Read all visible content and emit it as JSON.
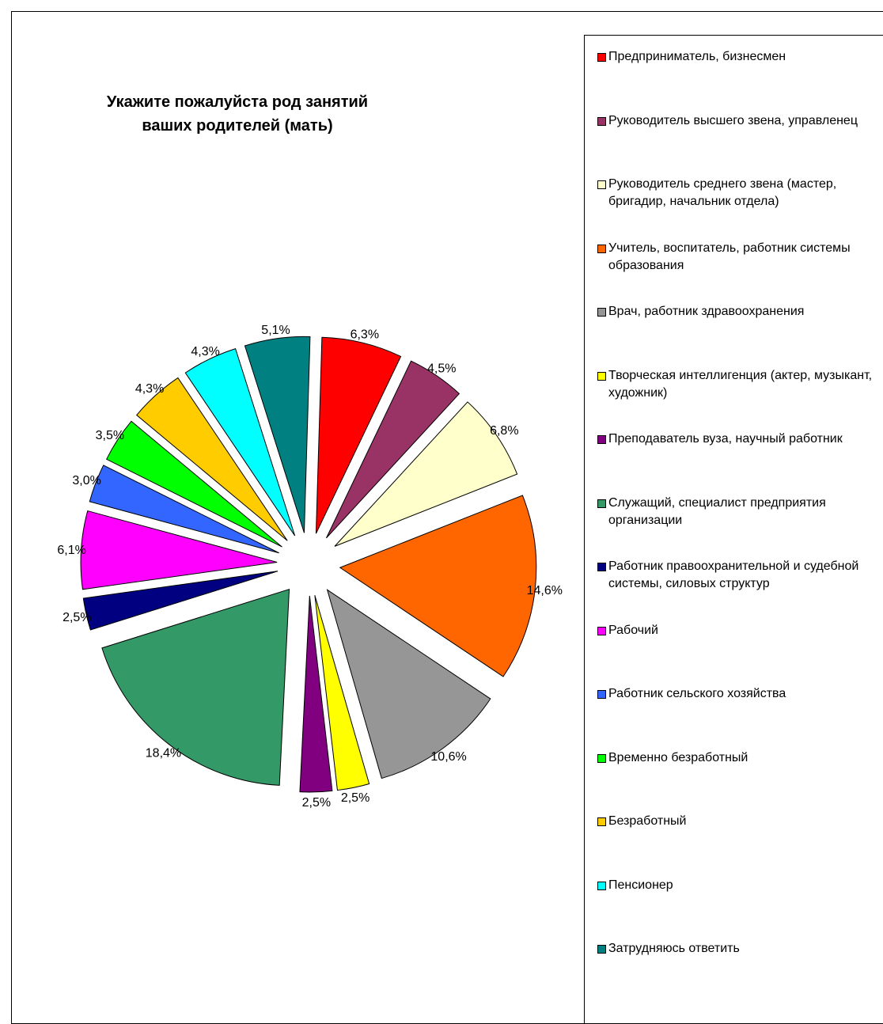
{
  "chart_data": {
    "type": "pie",
    "title": "Укажите пожалуйста род занятий ваших родителей (мать)",
    "legend_position": "right",
    "series": [
      {
        "name": "Предприниматель, бизнесмен",
        "value": 6.3,
        "label": "6,3%",
        "color": "#ff0000"
      },
      {
        "name": "Руководитель высшего звена, управленец",
        "value": 4.5,
        "label": "4,5%",
        "color": "#993366"
      },
      {
        "name": "Руководитель среднего звена (мастер, бригадир, начальник отдела)",
        "value": 6.8,
        "label": "6,8%",
        "color": "#ffffcc"
      },
      {
        "name": "Учитель, воспитатель, работник системы образования",
        "value": 14.6,
        "label": "14,6%",
        "color": "#ff6600"
      },
      {
        "name": "Врач, работник здравоохранения",
        "value": 10.6,
        "label": "10,6%",
        "color": "#969696"
      },
      {
        "name": "Творческая интеллигенция (актер, музыкант, художник)",
        "value": 2.5,
        "label": "2,5%",
        "color": "#ffff00"
      },
      {
        "name": "Преподаватель вуза, научный работник",
        "value": 2.5,
        "label": "2,5%",
        "color": "#800080"
      },
      {
        "name": "Служащий, специалист предприятия организации",
        "value": 18.4,
        "label": "18,4%",
        "color": "#339966"
      },
      {
        "name": "Работник правоохранительной и судебной системы, силовых структур",
        "value": 2.5,
        "label": "2,5%",
        "color": "#000080"
      },
      {
        "name": "Рабочий",
        "value": 6.1,
        "label": "6,1%",
        "color": "#ff00ff"
      },
      {
        "name": "Работник сельского хозяйства",
        "value": 3.0,
        "label": "3,0%",
        "color": "#3366ff"
      },
      {
        "name": "Временно безработный",
        "value": 3.5,
        "label": "3,5%",
        "color": "#00ff00"
      },
      {
        "name": "Безработный",
        "value": 4.3,
        "label": "4,3%",
        "color": "#ffcc00"
      },
      {
        "name": "Пенсионер",
        "value": 4.3,
        "label": "4,3%",
        "color": "#00ffff"
      },
      {
        "name": "Затрудняюсь ответить",
        "value": 5.1,
        "label": "5,1%",
        "color": "#008080"
      }
    ]
  }
}
